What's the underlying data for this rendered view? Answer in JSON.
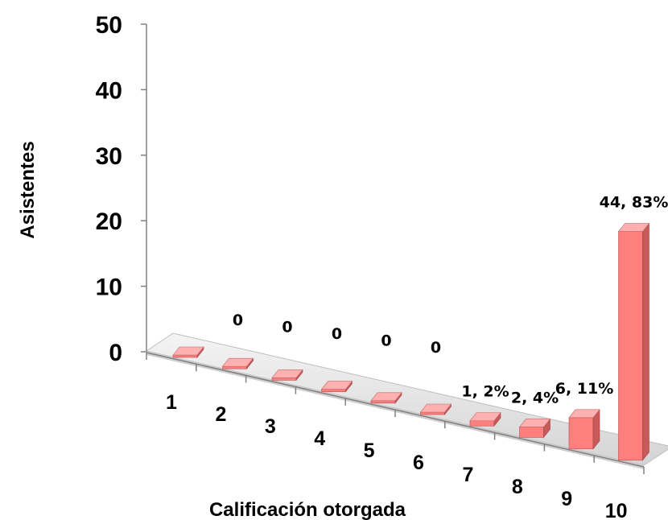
{
  "chart_data": {
    "type": "bar",
    "xlabel": "Calificación otorgada",
    "ylabel": "Asistentes",
    "ylim": [
      0,
      50
    ],
    "yticks": [
      "0",
      "10",
      "20",
      "30",
      "40",
      "50"
    ],
    "categories": [
      "1",
      "2",
      "3",
      "4",
      "5",
      "6",
      "7",
      "8",
      "9",
      "10"
    ],
    "values": [
      0,
      0,
      0,
      0,
      0,
      0,
      1,
      2,
      6,
      44
    ],
    "data_labels": [
      "",
      "0",
      "0",
      "0",
      "0",
      "0",
      "1, 2%",
      "2, 4%",
      "6, 11%",
      "44, 83%"
    ],
    "style": "3d-column",
    "colors": {
      "bar_front": "#ff7f7f",
      "bar_side": "#c85a5a",
      "bar_top": "#ffb0b0",
      "floor": "#e2e2e2"
    }
  }
}
